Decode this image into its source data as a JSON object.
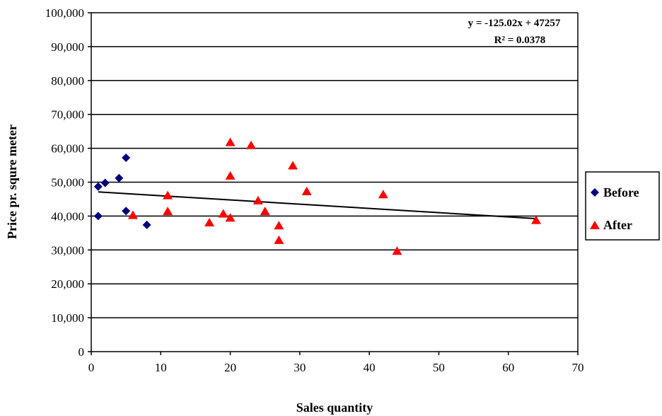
{
  "chart_data": {
    "type": "scatter",
    "xlabel": "Sales quantity",
    "ylabel": "Price pr. squre meter",
    "xlim": [
      0,
      70
    ],
    "ylim": [
      0,
      100000
    ],
    "x_ticks": [
      0,
      10,
      20,
      30,
      40,
      50,
      60,
      70
    ],
    "y_ticks": [
      0,
      10000,
      20000,
      30000,
      40000,
      50000,
      60000,
      70000,
      80000,
      90000,
      100000
    ],
    "x_tick_labels": [
      "0",
      "10",
      "20",
      "30",
      "40",
      "50",
      "60",
      "70"
    ],
    "y_tick_labels": [
      "0",
      "10,000",
      "20,000",
      "30,000",
      "40,000",
      "50,000",
      "60,000",
      "70,000",
      "80,000",
      "90,000",
      "100,000"
    ],
    "grid": "horizontal",
    "legend_position": "right",
    "series": [
      {
        "name": "Before",
        "marker": "diamond",
        "color": "#000080",
        "points": [
          {
            "x": 1,
            "y": 48700
          },
          {
            "x": 1,
            "y": 40000
          },
          {
            "x": 2,
            "y": 49800
          },
          {
            "x": 4,
            "y": 51200
          },
          {
            "x": 5,
            "y": 57200
          },
          {
            "x": 5,
            "y": 41500
          },
          {
            "x": 8,
            "y": 37400
          }
        ]
      },
      {
        "name": "After",
        "marker": "triangle",
        "color": "#ff0000",
        "points": [
          {
            "x": 6,
            "y": 40200
          },
          {
            "x": 11,
            "y": 46000
          },
          {
            "x": 11,
            "y": 41300
          },
          {
            "x": 17,
            "y": 38000
          },
          {
            "x": 19,
            "y": 40600
          },
          {
            "x": 20,
            "y": 61700
          },
          {
            "x": 20,
            "y": 51800
          },
          {
            "x": 20,
            "y": 39400
          },
          {
            "x": 23,
            "y": 60800
          },
          {
            "x": 24,
            "y": 44500
          },
          {
            "x": 25,
            "y": 41300
          },
          {
            "x": 27,
            "y": 37100
          },
          {
            "x": 27,
            "y": 32800
          },
          {
            "x": 29,
            "y": 54800
          },
          {
            "x": 31,
            "y": 47200
          },
          {
            "x": 42,
            "y": 46300
          },
          {
            "x": 44,
            "y": 29600
          },
          {
            "x": 64,
            "y": 38700
          }
        ]
      }
    ],
    "trendline": {
      "slope": -125.02,
      "intercept": 47257,
      "x_range": [
        1,
        64
      ],
      "equation": "y = -125.02x + 47257",
      "r_squared": "R² = 0.0378"
    }
  }
}
